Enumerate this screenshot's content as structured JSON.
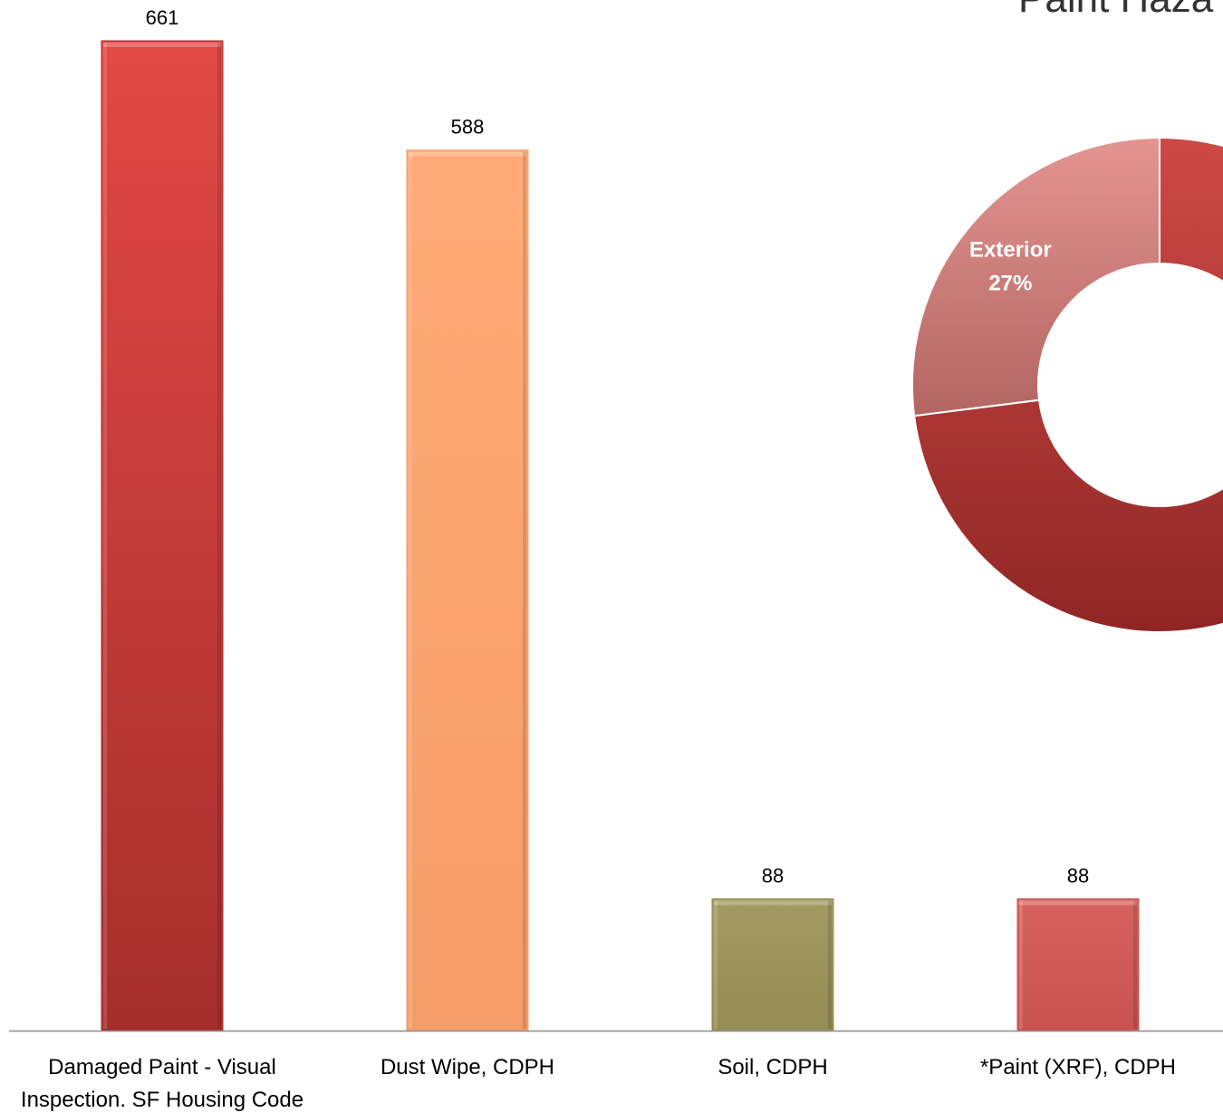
{
  "chart_data": [
    {
      "type": "bar",
      "categories": [
        "Damaged Paint - Visual Inspection. SF Housing Code",
        "Dust Wipe, CDPH",
        "Soil, CDPH",
        "*Paint (XRF), CDPH"
      ],
      "category_lines": [
        [
          "Damaged Paint - Visual",
          "Inspection. SF Housing Code"
        ],
        [
          "Dust Wipe, CDPH"
        ],
        [
          "Soil, CDPH"
        ],
        [
          "*Paint (XRF), CDPH"
        ]
      ],
      "values": [
        661,
        588,
        88,
        88
      ],
      "data_labels": [
        "661",
        "588",
        "88",
        "88"
      ],
      "bar_colors": [
        [
          "#e24845",
          "#a52e2c"
        ],
        [
          "#ffaa78",
          "#f59d6a"
        ],
        [
          "#a39a62",
          "#968c55"
        ],
        [
          "#d6625f",
          "#c85250"
        ]
      ],
      "ylim": [
        0,
        661
      ],
      "grid": false
    },
    {
      "type": "pie",
      "title": "Paint Haza",
      "slices": [
        {
          "label": "Exterior",
          "pct_label": "27%",
          "value": 27,
          "color": "#c9716f"
        },
        {
          "label": "",
          "pct_label": "",
          "value": 73,
          "color": "#b33a37"
        }
      ]
    }
  ]
}
